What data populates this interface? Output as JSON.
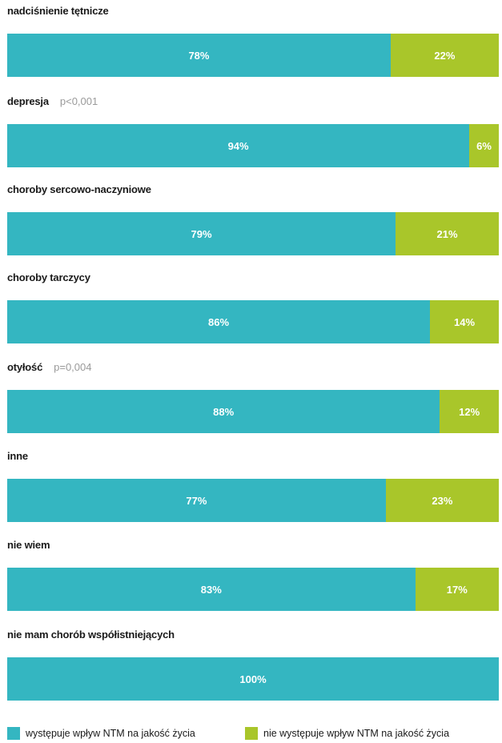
{
  "chart_data": {
    "type": "bar",
    "orientation": "horizontal",
    "stacked": true,
    "unit": "%",
    "xlim": [
      0,
      100
    ],
    "grid": false,
    "legend_position": "bottom",
    "categories": [
      "nadciśnienie tętnicze",
      "depresja",
      "choroby sercowo-naczyniowe",
      "choroby tarczycy",
      "otyłość",
      "inne",
      "nie wiem",
      "nie mam chorób współistniejących"
    ],
    "annotations": [
      "",
      "p<0,001",
      "",
      "",
      "p=0,004",
      "",
      "",
      ""
    ],
    "series": [
      {
        "name": "występuje wpływ NTM na jakość życia",
        "color": "#34b6c1",
        "values": [
          78,
          94,
          79,
          86,
          88,
          77,
          83,
          100
        ],
        "labels": [
          "78%",
          "94%",
          "79%",
          "86%",
          "88%",
          "77%",
          "83%",
          "100%"
        ]
      },
      {
        "name": "nie występuje wpływ NTM na jakość życia",
        "color": "#a9c62a",
        "values": [
          22,
          6,
          21,
          14,
          12,
          23,
          17,
          0
        ],
        "labels": [
          "22%",
          "6%",
          "21%",
          "14%",
          "12%",
          "23%",
          "17%",
          ""
        ]
      }
    ]
  }
}
